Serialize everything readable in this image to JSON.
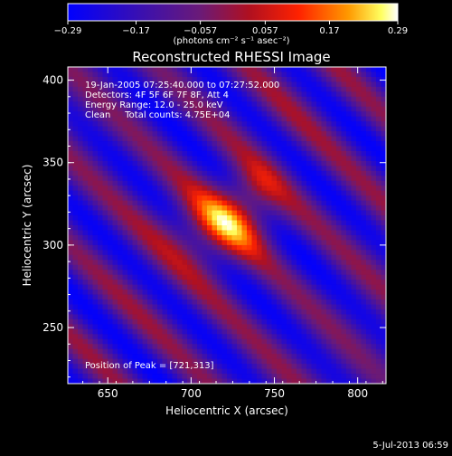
{
  "chart_data": {
    "type": "heatmap",
    "title": "Reconstructed RHESSI Image",
    "xlabel": "Heliocentric X (arcsec)",
    "ylabel": "Heliocentric Y (arcsec)",
    "xlim": [
      626,
      817
    ],
    "ylim": [
      216,
      408
    ],
    "x_ticks": [
      650,
      700,
      750,
      800
    ],
    "y_ticks": [
      250,
      300,
      350,
      400
    ],
    "colorbar": {
      "range": [
        -0.29,
        0.29
      ],
      "ticks": [
        {
          "value": -0.29,
          "label": "−0.29"
        },
        {
          "value": -0.17,
          "label": "−0.17"
        },
        {
          "value": -0.057,
          "label": "−0.057"
        },
        {
          "value": 0.057,
          "label": "0.057"
        },
        {
          "value": 0.17,
          "label": "0.17"
        },
        {
          "value": 0.29,
          "label": "0.29"
        }
      ],
      "unit_label": "(photons cm⁻² s⁻¹ asec⁻²)"
    },
    "annotations": [
      "19-Jan-2005 07:25:40.000 to 07:27:52.000",
      "Detectors: 4F 5F 6F 7F 8F, Att 4",
      "Energy Range: 12.0 - 25.0 keV",
      "Clean     Total counts: 4.75E+04"
    ],
    "peak_label": "Position of Peak = [721,313]",
    "peak": [
      721,
      313
    ],
    "peak_value": 0.29
  },
  "footer": {
    "date": "5-Jul-2013 06:59"
  }
}
